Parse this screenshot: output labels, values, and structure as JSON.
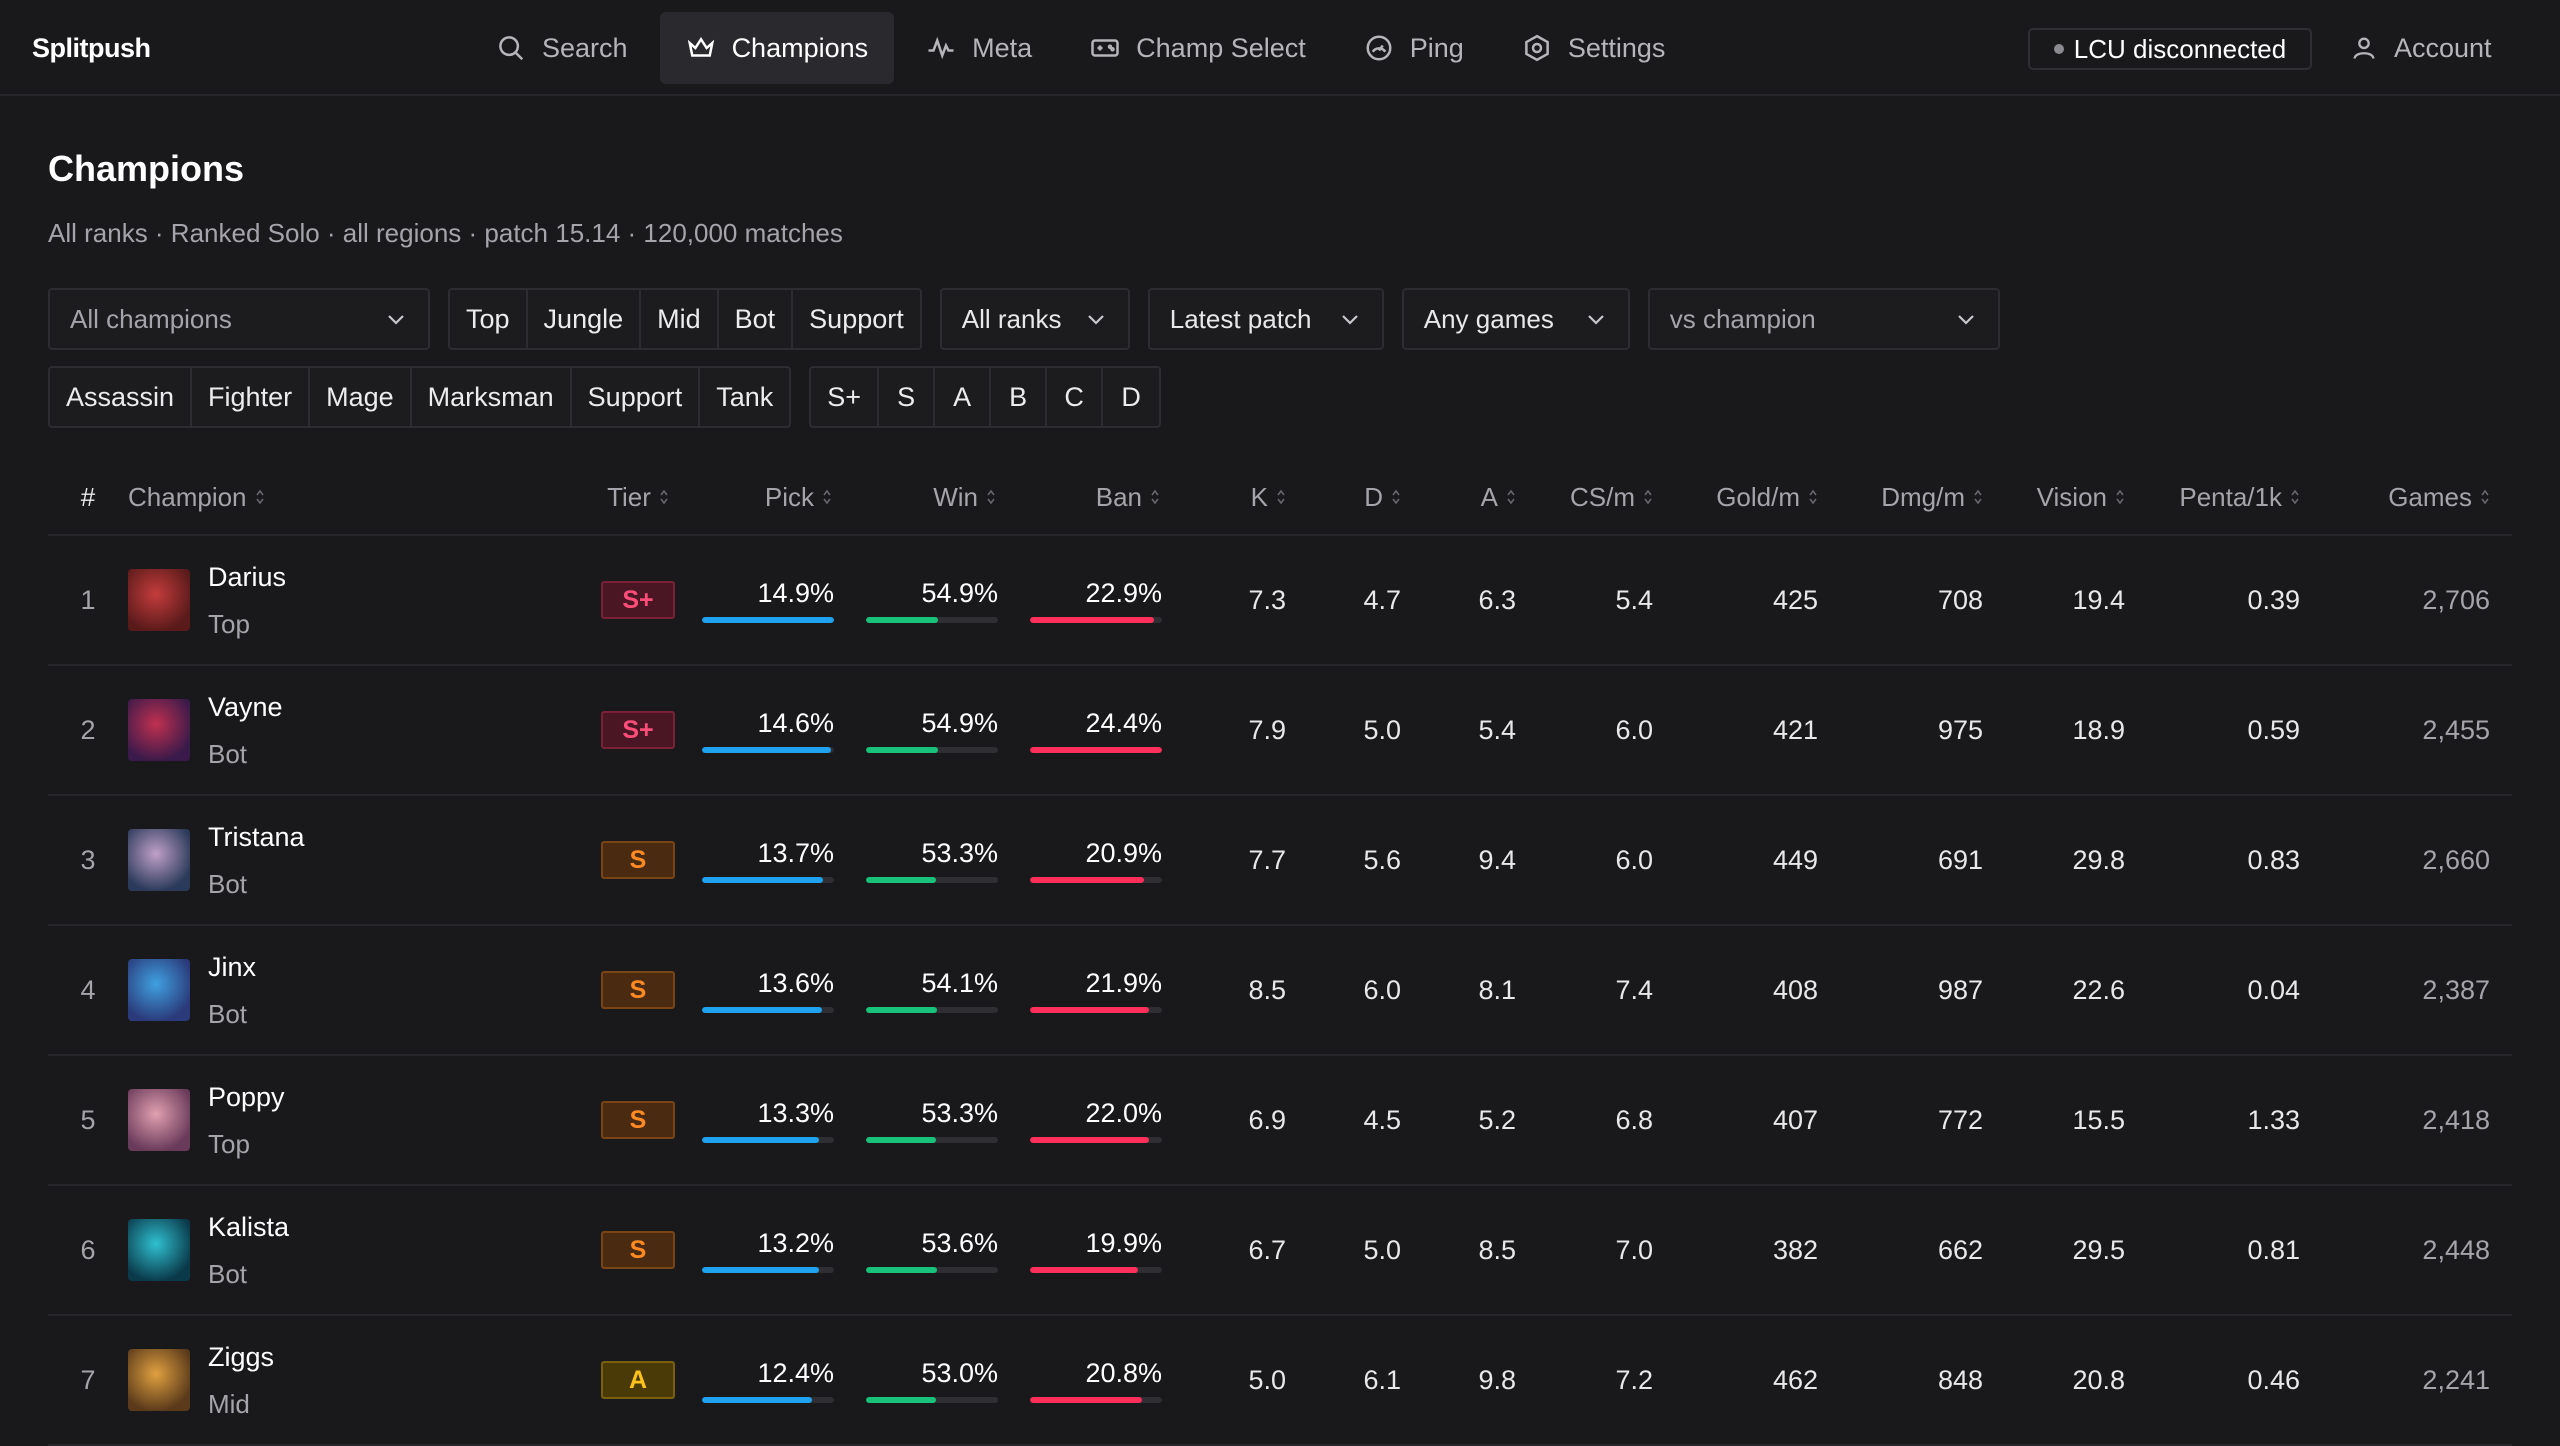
{
  "brand": "Splitpush",
  "nav": [
    {
      "label": "Search",
      "icon": "search-icon"
    },
    {
      "label": "Champions",
      "icon": "crown-icon",
      "active": true
    },
    {
      "label": "Meta",
      "icon": "pulse-icon"
    },
    {
      "label": "Champ Select",
      "icon": "gamepad-icon"
    },
    {
      "label": "Ping",
      "icon": "gauge-icon"
    },
    {
      "label": "Settings",
      "icon": "gear-icon"
    }
  ],
  "lcu_status": "LCU disconnected",
  "account": "Account",
  "page": {
    "title": "Champions",
    "subtitle": "All ranks · Ranked Solo · all regions · patch 15.14 · 120,000 matches"
  },
  "filters": {
    "champion_select": "All champions",
    "roles": [
      "Top",
      "Jungle",
      "Mid",
      "Bot",
      "Support"
    ],
    "rank_select": "All ranks",
    "patch_select": "Latest patch",
    "games_select": "Any games",
    "vs_select": "vs champion",
    "classes": [
      "Assassin",
      "Fighter",
      "Mage",
      "Marksman",
      "Support",
      "Tank"
    ],
    "tiers": [
      "S+",
      "S",
      "A",
      "B",
      "C",
      "D"
    ]
  },
  "columns": {
    "rank": "#",
    "champion": "Champion",
    "tier": "Tier",
    "pick": "Pick",
    "win": "Win",
    "ban": "Ban",
    "k": "K",
    "d": "D",
    "a": "A",
    "cs": "CS/m",
    "gold": "Gold/m",
    "dmg": "Dmg/m",
    "vision": "Vision",
    "penta": "Penta/1k",
    "games": "Games"
  },
  "colors": {
    "pick": "#1fa3f0",
    "win": "#19c27a",
    "ban": "#ff2e5a"
  },
  "rows": [
    {
      "rank": "1",
      "name": "Darius",
      "role": "Top",
      "tier": "S+",
      "pick": "14.9%",
      "pick_v": 100,
      "win": "54.9%",
      "win_v": 54.9,
      "ban": "22.9%",
      "ban_v": 94,
      "k": "7.3",
      "d": "4.7",
      "a": "6.3",
      "cs": "5.4",
      "gold": "425",
      "dmg": "708",
      "vision": "19.4",
      "penta": "0.39",
      "games": "2,706",
      "avatar": [
        "#5a1a1a",
        "#c43c3c"
      ]
    },
    {
      "rank": "2",
      "name": "Vayne",
      "role": "Bot",
      "tier": "S+",
      "pick": "14.6%",
      "pick_v": 98,
      "win": "54.9%",
      "win_v": 54.9,
      "ban": "24.4%",
      "ban_v": 100,
      "k": "7.9",
      "d": "5.0",
      "a": "5.4",
      "cs": "6.0",
      "gold": "421",
      "dmg": "975",
      "vision": "18.9",
      "penta": "0.59",
      "games": "2,455",
      "avatar": [
        "#3a1a4a",
        "#c03050"
      ]
    },
    {
      "rank": "3",
      "name": "Tristana",
      "role": "Bot",
      "tier": "S",
      "pick": "13.7%",
      "pick_v": 92,
      "win": "53.3%",
      "win_v": 53.3,
      "ban": "20.9%",
      "ban_v": 86,
      "k": "7.7",
      "d": "5.6",
      "a": "9.4",
      "cs": "6.0",
      "gold": "449",
      "dmg": "691",
      "vision": "29.8",
      "penta": "0.83",
      "games": "2,660",
      "avatar": [
        "#2a3a5a",
        "#c0a0c8"
      ]
    },
    {
      "rank": "4",
      "name": "Jinx",
      "role": "Bot",
      "tier": "S",
      "pick": "13.6%",
      "pick_v": 91,
      "win": "54.1%",
      "win_v": 54.1,
      "ban": "21.9%",
      "ban_v": 90,
      "k": "8.5",
      "d": "6.0",
      "a": "8.1",
      "cs": "7.4",
      "gold": "408",
      "dmg": "987",
      "vision": "22.6",
      "penta": "0.04",
      "games": "2,387",
      "avatar": [
        "#2a3a7a",
        "#40a0e0"
      ]
    },
    {
      "rank": "5",
      "name": "Poppy",
      "role": "Top",
      "tier": "S",
      "pick": "13.3%",
      "pick_v": 89,
      "win": "53.3%",
      "win_v": 53.3,
      "ban": "22.0%",
      "ban_v": 90,
      "k": "6.9",
      "d": "4.5",
      "a": "5.2",
      "cs": "6.8",
      "gold": "407",
      "dmg": "772",
      "vision": "15.5",
      "penta": "1.33",
      "games": "2,418",
      "avatar": [
        "#6a3a5a",
        "#e0a0b0"
      ]
    },
    {
      "rank": "6",
      "name": "Kalista",
      "role": "Bot",
      "tier": "S",
      "pick": "13.2%",
      "pick_v": 89,
      "win": "53.6%",
      "win_v": 53.6,
      "ban": "19.9%",
      "ban_v": 82,
      "k": "6.7",
      "d": "5.0",
      "a": "8.5",
      "cs": "7.0",
      "gold": "382",
      "dmg": "662",
      "vision": "29.5",
      "penta": "0.81",
      "games": "2,448",
      "avatar": [
        "#0a3a4a",
        "#30c0d0"
      ]
    },
    {
      "rank": "7",
      "name": "Ziggs",
      "role": "Mid",
      "tier": "A",
      "pick": "12.4%",
      "pick_v": 83,
      "win": "53.0%",
      "win_v": 53.0,
      "ban": "20.8%",
      "ban_v": 85,
      "k": "5.0",
      "d": "6.1",
      "a": "9.8",
      "cs": "7.2",
      "gold": "462",
      "dmg": "848",
      "vision": "20.8",
      "penta": "0.46",
      "games": "2,241",
      "avatar": [
        "#5a3a1a",
        "#e0a040"
      ]
    }
  ]
}
